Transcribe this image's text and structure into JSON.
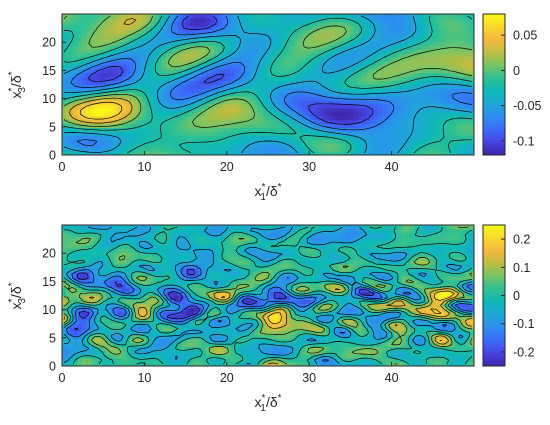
{
  "chart_data": [
    {
      "type": "heatmap",
      "title": "",
      "xlabel": {
        "base": "x",
        "sup": "*",
        "sub": "1",
        "rest": "/δ",
        "rest_sup": "*"
      },
      "ylabel": {
        "base": "x",
        "sup": "*",
        "sub": "3",
        "rest": "/δ",
        "rest_sup": "*"
      },
      "xlim": [
        0,
        50
      ],
      "ylim": [
        0,
        25
      ],
      "xticks": [
        0,
        10,
        20,
        30,
        40
      ],
      "xtick_labels": [
        "0",
        "10",
        "20",
        "30",
        "40"
      ],
      "yticks": [
        0,
        5,
        10,
        15,
        20
      ],
      "ytick_labels": [
        "0",
        "5",
        "10",
        "15",
        "20"
      ],
      "clim": [
        -0.12,
        0.08
      ],
      "colorbar": {
        "ticks": [
          0.05,
          0,
          -0.05,
          -0.1
        ],
        "tick_labels": [
          "0.05",
          "0",
          "-0.05",
          "-0.1"
        ]
      },
      "colormap": "parula",
      "contour_lines": true,
      "structure": "large-scale streaky field; strong positive patches near x1*≈10-15, x3*≈10 and x1*≈20-25, x3*≈5"
    },
    {
      "type": "heatmap",
      "title": "",
      "xlabel": {
        "base": "x",
        "sup": "*",
        "sub": "1",
        "rest": "/δ",
        "rest_sup": "*"
      },
      "ylabel": {
        "base": "x",
        "sup": "*",
        "sub": "3",
        "rest": "/δ",
        "rest_sup": "*"
      },
      "xlim": [
        0,
        50
      ],
      "ylim": [
        0,
        25
      ],
      "xticks": [
        0,
        10,
        20,
        30,
        40
      ],
      "xtick_labels": [
        "0",
        "10",
        "20",
        "30",
        "40"
      ],
      "yticks": [
        0,
        5,
        10,
        15,
        20
      ],
      "ytick_labels": [
        "0",
        "5",
        "10",
        "15",
        "20"
      ],
      "clim": [
        -0.25,
        0.25
      ],
      "colorbar": {
        "ticks": [
          0.2,
          0.1,
          0,
          -0.1,
          -0.2
        ],
        "tick_labels": [
          "0.2",
          "0.1",
          "0",
          "-0.1",
          "-0.2"
        ]
      },
      "colormap": "parula",
      "contour_lines": true,
      "structure": "small-scale fluctuations, most intense in the band x3*≈5-15"
    }
  ],
  "colors": {
    "parula_stops": [
      "#3e26a8",
      "#4543e3",
      "#3c6bfa",
      "#2c8df0",
      "#1fa6d8",
      "#0db8b8",
      "#2fc191",
      "#7ac463",
      "#c0bd40",
      "#f4b83c",
      "#f9d82e",
      "#f9fb15"
    ],
    "contour": "#000000",
    "axis": "#262626"
  }
}
